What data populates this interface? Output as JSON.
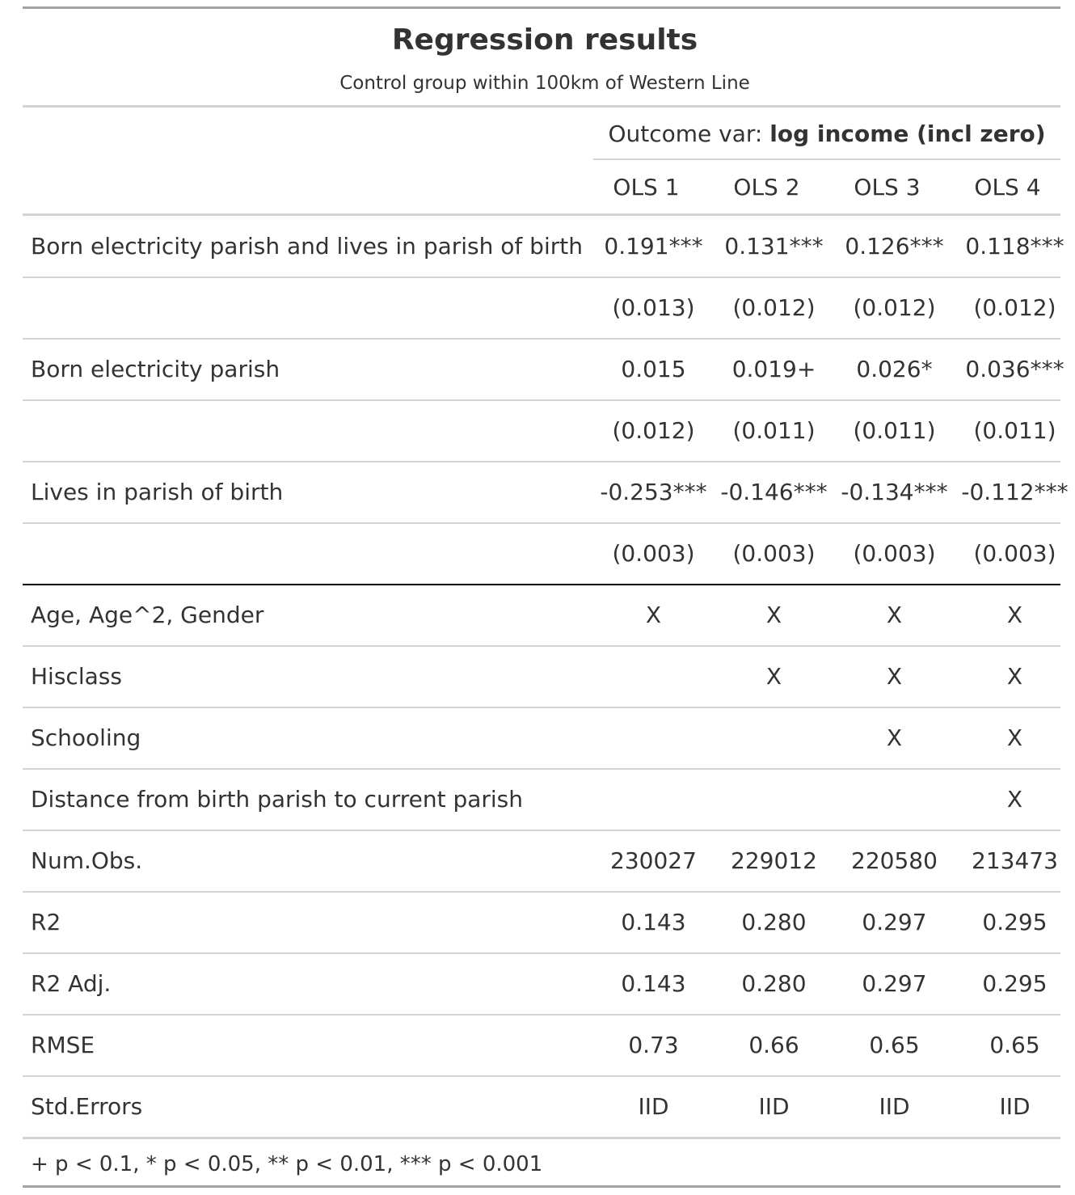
{
  "table": {
    "title": "Regression results",
    "subtitle": "Control group within 100km of Western Line",
    "spanner": {
      "prefix": "Outcome var: ",
      "emphasis": "log income (incl zero)"
    },
    "columns": [
      "OLS 1",
      "OLS 2",
      "OLS 3",
      "OLS 4"
    ],
    "rows": [
      {
        "label": "Born electricity parish and lives in parish of birth",
        "values": [
          "0.191***",
          "0.131***",
          "0.126***",
          "0.118***"
        ]
      },
      {
        "label": "",
        "values": [
          "(0.013)",
          "(0.012)",
          "(0.012)",
          "(0.012)"
        ]
      },
      {
        "label": "Born electricity parish",
        "values": [
          "0.015",
          "0.019+",
          "0.026*",
          "0.036***"
        ]
      },
      {
        "label": "",
        "values": [
          "(0.012)",
          "(0.011)",
          "(0.011)",
          "(0.011)"
        ]
      },
      {
        "label": "Lives in parish of birth",
        "values": [
          "-0.253***",
          "-0.146***",
          "-0.134***",
          "-0.112***"
        ]
      },
      {
        "label": "",
        "values": [
          "(0.003)",
          "(0.003)",
          "(0.003)",
          "(0.003)"
        ]
      },
      {
        "label": "Age, Age^2, Gender",
        "values": [
          "X",
          "X",
          "X",
          "X"
        ]
      },
      {
        "label": "Hisclass",
        "values": [
          "",
          "X",
          "X",
          "X"
        ]
      },
      {
        "label": "Schooling",
        "values": [
          "",
          "",
          "X",
          "X"
        ]
      },
      {
        "label": "Distance from birth parish to current parish",
        "values": [
          "",
          "",
          "",
          "X"
        ]
      },
      {
        "label": "Num.Obs.",
        "values": [
          "230027",
          "229012",
          "220580",
          "213473"
        ]
      },
      {
        "label": "R2",
        "values": [
          "0.143",
          "0.280",
          "0.297",
          "0.295"
        ]
      },
      {
        "label": "R2 Adj.",
        "values": [
          "0.143",
          "0.280",
          "0.297",
          "0.295"
        ]
      },
      {
        "label": "RMSE",
        "values": [
          "0.73",
          "0.66",
          "0.65",
          "0.65"
        ]
      },
      {
        "label": "Std.Errors",
        "values": [
          "IID",
          "IID",
          "IID",
          "IID"
        ]
      }
    ],
    "footnote": "+ p < 0.1, * p < 0.05, ** p < 0.01, *** p < 0.001"
  },
  "colors": {
    "text": "#333333",
    "rule_heavy": "#a3a3a3",
    "rule_light": "#d3d3d3",
    "rule_dark": "#000000"
  }
}
